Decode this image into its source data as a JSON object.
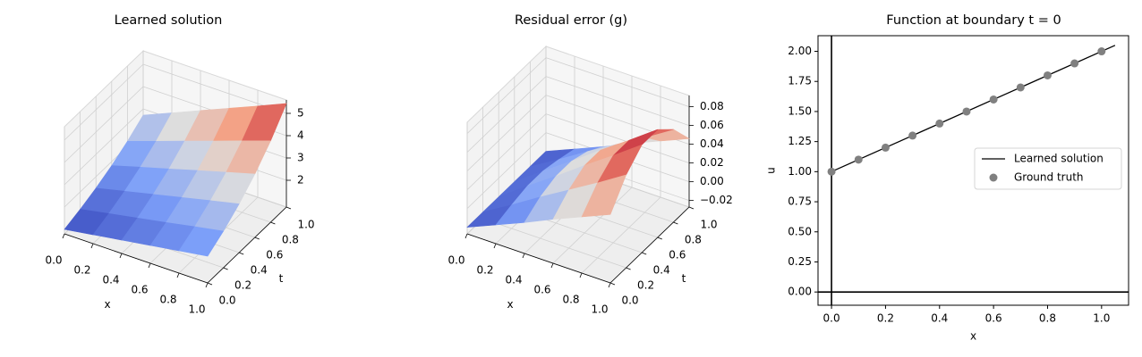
{
  "chart_data": [
    {
      "type": "surface",
      "title": "Learned solution",
      "xlabel": "x",
      "ylabel": "t",
      "x": [
        0,
        0.2,
        0.4,
        0.6,
        0.8,
        1
      ],
      "y": [
        0,
        0.2,
        0.4,
        0.6,
        0.8,
        1
      ],
      "z": [
        [
          1,
          1.2,
          1.4,
          1.6,
          1.8,
          2
        ],
        [
          1.22,
          1.47,
          1.71,
          1.95,
          2.2,
          2.44
        ],
        [
          1.49,
          1.79,
          2.09,
          2.39,
          2.69,
          2.98
        ],
        [
          1.82,
          2.19,
          2.55,
          2.92,
          3.28,
          3.64
        ],
        [
          2.23,
          2.67,
          3.12,
          3.56,
          4.01,
          4.45
        ],
        [
          2.72,
          3.26,
          3.81,
          4.35,
          4.89,
          5.44
        ]
      ],
      "colormap": "coolwarm",
      "xlim": [
        0,
        1
      ],
      "ylim": [
        0,
        1
      ],
      "zlim": [
        0.8,
        5.6
      ],
      "xticks": [
        {
          "value": 0,
          "label": "0.0"
        },
        {
          "value": 0.2,
          "label": "0.2"
        },
        {
          "value": 0.4,
          "label": "0.4"
        },
        {
          "value": 0.6,
          "label": "0.6"
        },
        {
          "value": 0.8,
          "label": "0.8"
        },
        {
          "value": 1,
          "label": "1.0"
        }
      ],
      "yticks": [
        {
          "value": 0,
          "label": "0.0"
        },
        {
          "value": 0.2,
          "label": "0.2"
        },
        {
          "value": 0.4,
          "label": "0.4"
        },
        {
          "value": 0.6,
          "label": "0.6"
        },
        {
          "value": 0.8,
          "label": "0.8"
        },
        {
          "value": 1,
          "label": "1.0"
        }
      ],
      "zticks": [
        2,
        3,
        4,
        5
      ],
      "grid": true
    },
    {
      "type": "surface",
      "title": "Residual error (g)",
      "xlabel": "x",
      "ylabel": "t",
      "x": [
        0,
        0.2,
        0.4,
        0.6,
        0.8,
        1
      ],
      "y": [
        0,
        0.2,
        0.4,
        0.6,
        0.8,
        1
      ],
      "z": [
        [
          -0.02,
          -0.007,
          0.006,
          0.02,
          0.033,
          0.046
        ],
        [
          -0.02,
          -0.002,
          0.017,
          0.035,
          0.053,
          0.072
        ],
        [
          -0.02,
          0.002,
          0.023,
          0.045,
          0.066,
          0.088
        ],
        [
          -0.02,
          0.002,
          0.023,
          0.045,
          0.066,
          0.088
        ],
        [
          -0.02,
          -0.002,
          0.017,
          0.035,
          0.053,
          0.072
        ],
        [
          -0.02,
          -0.007,
          0.006,
          0.02,
          0.033,
          0.046
        ]
      ],
      "colormap": "coolwarm",
      "xlim": [
        0,
        1
      ],
      "ylim": [
        0,
        1
      ],
      "zlim": [
        -0.027,
        0.092
      ],
      "xticks": [
        {
          "value": 0,
          "label": "0.0"
        },
        {
          "value": 0.2,
          "label": "0.2"
        },
        {
          "value": 0.4,
          "label": "0.4"
        },
        {
          "value": 0.6,
          "label": "0.6"
        },
        {
          "value": 0.8,
          "label": "0.8"
        },
        {
          "value": 1,
          "label": "1.0"
        }
      ],
      "yticks": [
        {
          "value": 0,
          "label": "0.0"
        },
        {
          "value": 0.2,
          "label": "0.2"
        },
        {
          "value": 0.4,
          "label": "0.4"
        },
        {
          "value": 0.6,
          "label": "0.6"
        },
        {
          "value": 0.8,
          "label": "0.8"
        },
        {
          "value": 1,
          "label": "1.0"
        }
      ],
      "zticks": [
        {
          "value": -0.02,
          "label": "−0.02"
        },
        {
          "value": 0,
          "label": "0.00"
        },
        {
          "value": 0.02,
          "label": "0.02"
        },
        {
          "value": 0.04,
          "label": "0.04"
        },
        {
          "value": 0.06,
          "label": "0.06"
        },
        {
          "value": 0.08,
          "label": "0.08"
        }
      ],
      "grid": true
    },
    {
      "type": "line",
      "title": "Function at boundary t = 0",
      "xlabel": "x",
      "ylabel": "u",
      "xlim": [
        -0.05,
        1.1
      ],
      "ylim": [
        -0.11,
        2.13
      ],
      "xticks": [
        {
          "value": 0,
          "label": "0.0"
        },
        {
          "value": 0.2,
          "label": "0.2"
        },
        {
          "value": 0.4,
          "label": "0.4"
        },
        {
          "value": 0.6,
          "label": "0.6"
        },
        {
          "value": 0.8,
          "label": "0.8"
        },
        {
          "value": 1,
          "label": "1.0"
        }
      ],
      "yticks": [
        {
          "value": 0,
          "label": "0.00"
        },
        {
          "value": 0.25,
          "label": "0.25"
        },
        {
          "value": 0.5,
          "label": "0.50"
        },
        {
          "value": 0.75,
          "label": "0.75"
        },
        {
          "value": 1,
          "label": "1.00"
        },
        {
          "value": 1.25,
          "label": "1.25"
        },
        {
          "value": 1.5,
          "label": "1.50"
        },
        {
          "value": 1.75,
          "label": "1.75"
        },
        {
          "value": 2,
          "label": "2.00"
        }
      ],
      "hlines": [
        0
      ],
      "vlines": [
        0
      ],
      "legend": "right",
      "series": [
        {
          "name": "Learned solution",
          "type": "line",
          "color": "#000000",
          "x": [
            0,
            1.05
          ],
          "values": [
            1,
            2.05
          ]
        },
        {
          "name": "Ground truth",
          "type": "scatter",
          "color": "#808080",
          "x": [
            0,
            0.1,
            0.2,
            0.3,
            0.4,
            0.5,
            0.6,
            0.7,
            0.8,
            0.9,
            1
          ],
          "values": [
            1,
            1.1,
            1.2,
            1.3,
            1.4,
            1.5,
            1.6,
            1.7,
            1.8,
            1.9,
            2
          ]
        }
      ]
    }
  ]
}
